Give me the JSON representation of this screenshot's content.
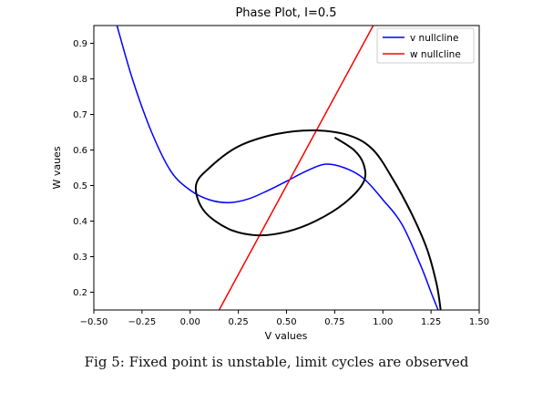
{
  "chart_data": {
    "type": "line",
    "title": "Phase Plot, I=0.5",
    "xlabel": "V values",
    "ylabel": "W vaues",
    "xlim": [
      -0.5,
      1.5
    ],
    "ylim": [
      0.15,
      0.95
    ],
    "xticks": [
      -0.5,
      -0.25,
      0.0,
      0.25,
      0.5,
      0.75,
      1.0,
      1.25,
      1.5
    ],
    "xtick_labels": [
      "−0.50",
      "−0.25",
      "0.00",
      "0.25",
      "0.50",
      "0.75",
      "1.00",
      "1.25",
      "1.50"
    ],
    "yticks": [
      0.2,
      0.3,
      0.4,
      0.5,
      0.6,
      0.7,
      0.8,
      0.9
    ],
    "ytick_labels": [
      "0.2",
      "0.3",
      "0.4",
      "0.5",
      "0.6",
      "0.7",
      "0.8",
      "0.9"
    ],
    "grid": false,
    "legend_position": "top-right",
    "series": [
      {
        "name": "v nullcline",
        "color": "#0000ff",
        "x": [
          -0.38,
          -0.3,
          -0.2,
          -0.1,
          0.0,
          0.1,
          0.2,
          0.3,
          0.4,
          0.5,
          0.6,
          0.7,
          0.8,
          0.9,
          1.0,
          1.1,
          1.2,
          1.25,
          1.3,
          1.32
        ],
        "y": [
          0.95,
          0.8,
          0.65,
          0.54,
          0.487,
          0.46,
          0.452,
          0.462,
          0.485,
          0.512,
          0.54,
          0.56,
          0.55,
          0.52,
          0.46,
          0.39,
          0.27,
          0.2,
          0.13,
          0.08
        ]
      },
      {
        "name": "w nullcline",
        "color": "#ff0000",
        "x": [
          0.15,
          0.95
        ],
        "y": [
          0.15,
          0.95
        ]
      },
      {
        "name": "",
        "color": "#000000",
        "x": [
          0.75,
          0.85,
          0.9,
          0.9,
          0.8,
          0.65,
          0.5,
          0.35,
          0.2,
          0.07,
          0.03,
          0.1,
          0.25,
          0.45,
          0.65,
          0.83,
          0.95,
          1.05,
          1.15,
          1.23,
          1.28,
          1.3
        ],
        "y": [
          0.635,
          0.6,
          0.56,
          0.51,
          0.45,
          0.4,
          0.37,
          0.36,
          0.378,
          0.43,
          0.5,
          0.55,
          0.61,
          0.645,
          0.655,
          0.64,
          0.6,
          0.52,
          0.42,
          0.32,
          0.22,
          0.15
        ]
      }
    ]
  },
  "caption": "Fig 5: Fixed point is unstable, limit cycles are observed"
}
